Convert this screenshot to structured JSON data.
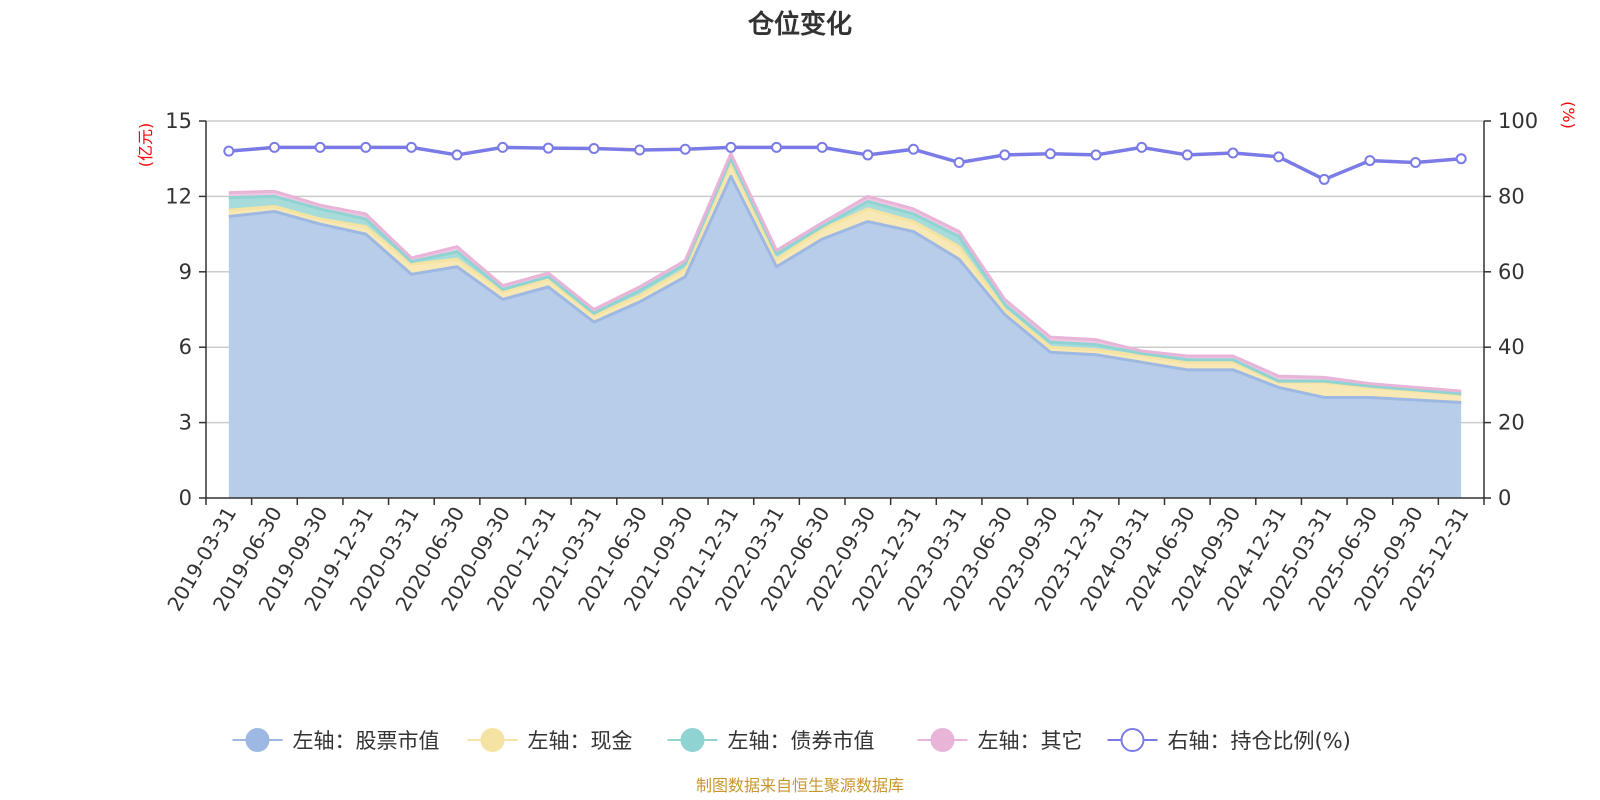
{
  "chart_data": {
    "type": "area",
    "title": "仓位变化",
    "left_axis_unit": "(亿元)",
    "right_axis_unit": "(%)",
    "ylim_left": [
      0,
      15
    ],
    "yticks_left": [
      0,
      3,
      6,
      9,
      12,
      15
    ],
    "ylim_right": [
      0,
      100
    ],
    "yticks_right": [
      0,
      20,
      40,
      60,
      80,
      100
    ],
    "categories": [
      "2019-03-31",
      "2019-06-30",
      "2019-09-30",
      "2019-12-31",
      "2020-03-31",
      "2020-06-30",
      "2020-09-30",
      "2020-12-31",
      "2021-03-31",
      "2021-06-30",
      "2021-09-30",
      "2021-12-31",
      "2022-03-31",
      "2022-06-30",
      "2022-09-30",
      "2022-12-31",
      "2023-03-31",
      "2023-06-30",
      "2023-09-30",
      "2023-12-31",
      "2024-03-31",
      "2024-06-30",
      "2024-09-30",
      "2024-12-31",
      "2025-03-31",
      "2025-06-30",
      "2025-09-30",
      "2025-12-31"
    ],
    "stacked_series": [
      {
        "name": "左轴：股票市值",
        "color": "#9db8e2",
        "fill": "#b8cde9",
        "values": [
          11.2,
          11.4,
          10.9,
          10.5,
          8.9,
          9.2,
          7.9,
          8.4,
          7.0,
          7.8,
          8.8,
          12.8,
          9.2,
          10.3,
          11.0,
          10.6,
          9.5,
          7.3,
          5.8,
          5.7,
          5.4,
          5.1,
          5.1,
          4.4,
          4.0,
          4.0,
          3.9,
          3.8
        ]
      },
      {
        "name": "左轴：现金",
        "color": "#f5e3a3",
        "fill": "#f7e8b5",
        "values": [
          0.25,
          0.2,
          0.2,
          0.3,
          0.4,
          0.3,
          0.3,
          0.3,
          0.25,
          0.25,
          0.3,
          0.5,
          0.3,
          0.4,
          0.5,
          0.4,
          0.5,
          0.2,
          0.2,
          0.2,
          0.25,
          0.3,
          0.3,
          0.2,
          0.6,
          0.4,
          0.35,
          0.3
        ]
      },
      {
        "name": "左轴：债券市值",
        "color": "#8fd3d3",
        "fill": "#a8dcda",
        "values": [
          0.5,
          0.4,
          0.4,
          0.3,
          0.1,
          0.3,
          0.1,
          0.1,
          0.1,
          0.2,
          0.2,
          0.2,
          0.2,
          0.1,
          0.3,
          0.3,
          0.4,
          0.2,
          0.2,
          0.2,
          0.1,
          0.1,
          0.1,
          0.05,
          0.05,
          0.05,
          0.05,
          0.05
        ]
      },
      {
        "name": "左轴：其它",
        "color": "#e8b4d8",
        "fill": "#eec7e2",
        "values": [
          0.2,
          0.2,
          0.15,
          0.2,
          0.15,
          0.2,
          0.15,
          0.15,
          0.15,
          0.15,
          0.15,
          0.2,
          0.15,
          0.15,
          0.2,
          0.2,
          0.2,
          0.2,
          0.2,
          0.2,
          0.1,
          0.15,
          0.15,
          0.2,
          0.15,
          0.1,
          0.1,
          0.1
        ]
      }
    ],
    "line_series": {
      "name": "右轴：持仓比例(%)",
      "color": "#7b7be8",
      "values": [
        92.0,
        93.0,
        93.0,
        93.0,
        93.0,
        91.0,
        93.0,
        92.8,
        92.7,
        92.3,
        92.5,
        93.0,
        93.0,
        93.0,
        91.0,
        92.5,
        89.0,
        91.0,
        91.3,
        91.0,
        93.0,
        91.0,
        91.5,
        90.5,
        84.5,
        89.5,
        89.0,
        90.0
      ]
    },
    "legend_position": "bottom",
    "source": "制图数据来自恒生聚源数据库"
  }
}
